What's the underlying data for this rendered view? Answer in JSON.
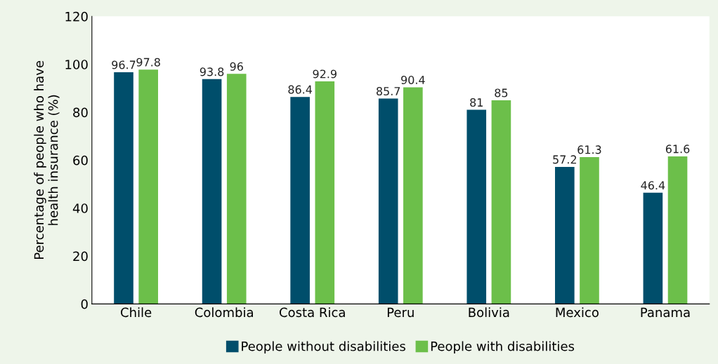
{
  "chart_data": {
    "type": "bar",
    "ylabel": "Percentage of people who have\nhealth insurance (%)",
    "categories": [
      "Chile",
      "Colombia",
      "Costa Rica",
      "Peru",
      "Bolivia",
      "Mexico",
      "Panama"
    ],
    "series": [
      {
        "name": "People without disabilities",
        "color": "#004e6b",
        "values": [
          96.7,
          93.8,
          86.4,
          85.7,
          81,
          57.2,
          46.4
        ]
      },
      {
        "name": "People with disabilities",
        "color": "#6cbf4a",
        "values": [
          97.8,
          96,
          92.9,
          90.4,
          85,
          61.3,
          61.6
        ]
      }
    ],
    "ylim": [
      0,
      120
    ],
    "yticks": [
      0,
      20,
      40,
      60,
      80,
      100,
      120
    ],
    "data_labels": true,
    "grid": false,
    "legend": "bottom"
  }
}
